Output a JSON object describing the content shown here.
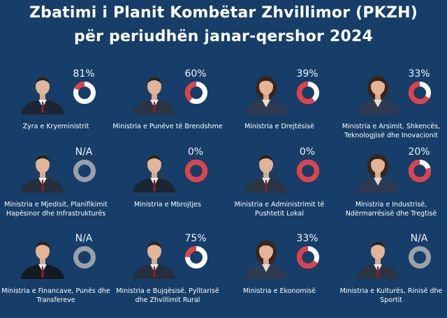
{
  "header": {
    "title_line1": "Zbatimi i Planit Kombëtar Zhvillimor (PKZH)",
    "title_line2": "për periudhën janar-qershor 2024"
  },
  "colors": {
    "background": "#163e68",
    "progress": "#e34049",
    "track": "#ffffff",
    "na_ring": "#9aa1a8"
  },
  "ministries": [
    {
      "label": "Zyra e Kryeministrit",
      "percent_text": "81%",
      "completion": 0.81,
      "gender": "m"
    },
    {
      "label": "Ministria e Punëve të Brendshme",
      "percent_text": "60%",
      "completion": 0.6,
      "gender": "m"
    },
    {
      "label": "Ministria e Drejtësisë",
      "percent_text": "39%",
      "completion": 0.39,
      "gender": "f"
    },
    {
      "label": "Ministria e Arsimit, Shkencës, Teknologjisë dhe Inovacionit",
      "percent_text": "33%",
      "completion": 0.33,
      "gender": "f"
    },
    {
      "label": "Ministria e Mjedisit, Planifikimit Hapësinor dhe Infrastrukturës",
      "percent_text": "N/A",
      "completion": null,
      "gender": "m"
    },
    {
      "label": "Ministria e Mbrojtjes",
      "percent_text": "0%",
      "completion": 0,
      "gender": "m"
    },
    {
      "label": "Ministria e Administrimit të Pushtetit Lokal",
      "percent_text": "0%",
      "completion": 0,
      "gender": "m"
    },
    {
      "label": "Ministria e Industrisë, Ndërmarrësisë dhe Tregtisë",
      "percent_text": "20%",
      "completion": 0.2,
      "gender": "f"
    },
    {
      "label": "Ministria e Financave, Punës dhe Transfereve",
      "percent_text": "N/A",
      "completion": null,
      "gender": "m"
    },
    {
      "label": "Ministria e Bujqësisë, Pylltarisë dhe Zhvillimit Rural",
      "percent_text": "75%",
      "completion": 0.75,
      "gender": "m"
    },
    {
      "label": "Ministria  e Ekonomisë",
      "percent_text": "33%",
      "completion": 0.33,
      "gender": "f"
    },
    {
      "label": "Ministria e Kulturës, Rinisë dhe Sportit",
      "percent_text": "N/A",
      "completion": null,
      "gender": "m"
    }
  ]
}
